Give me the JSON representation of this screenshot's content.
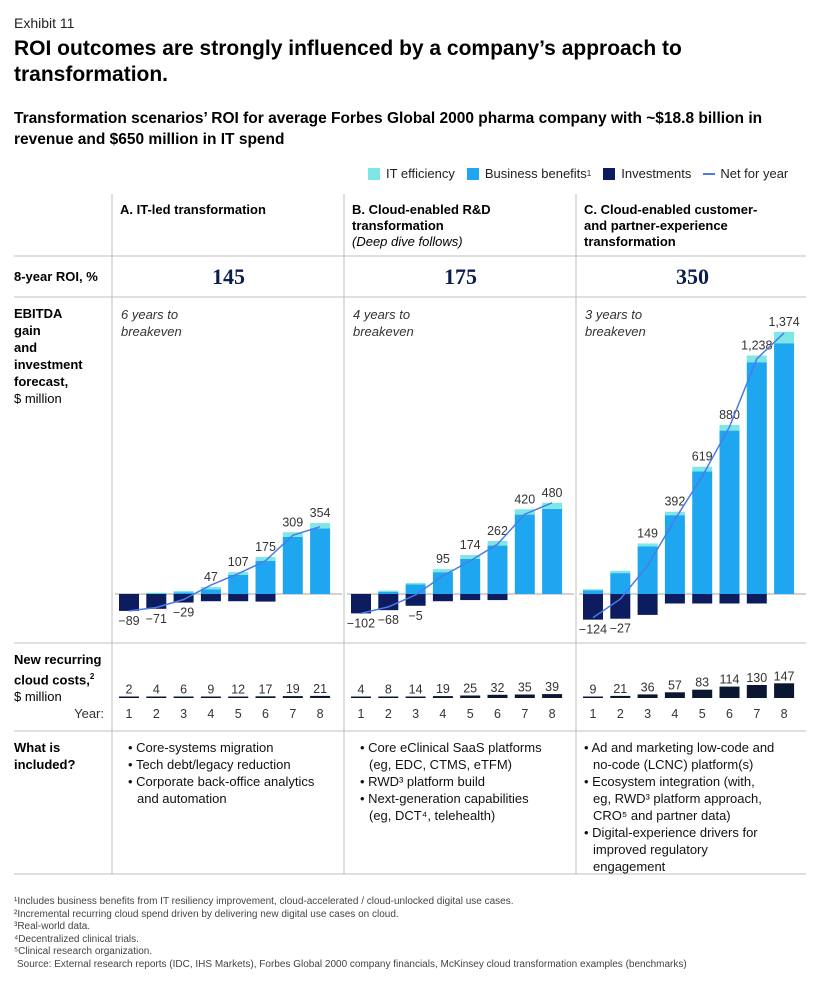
{
  "exhibit": "Exhibit 11",
  "title": "ROI outcomes are strongly influenced by a company’s approach to transformation.",
  "subtitle": "Transformation scenarios’ ROI for average Forbes Global 2000 pharma company with ~$18.8 billion in revenue and $650 million in IT spend",
  "legend": {
    "it_efficiency": "IT efficiency",
    "business_benefits": "Business benefits",
    "business_benefits_sup": "1",
    "investments": "Investments",
    "net": "Net for year"
  },
  "colors": {
    "it_efficiency": "#7ee7e6",
    "business_benefits": "#1ea7f0",
    "investments": "#0c1c5e",
    "net_line": "#4a7be8",
    "cloud_costs": "#0b1730",
    "divider": "#bfbfbf"
  },
  "row_labels": {
    "roi": "8-year ROI, %",
    "ebitda_1": "EBITDA",
    "ebitda_2": "gain",
    "ebitda_3": "and",
    "ebitda_4": "investment",
    "ebitda_5": "forecast,",
    "ebitda_unit": "$ million",
    "cloud_1": "New recurring",
    "cloud_2": "cloud costs,",
    "cloud_sup": "2",
    "cloud_unit": "$ million",
    "year": "Year:",
    "included_1": "What is",
    "included_2": "included?"
  },
  "columns": [
    {
      "title_1": "A. IT-led transformation",
      "title_2": "",
      "subtitle": "",
      "roi": "145",
      "breakeven_1": "6 years to",
      "breakeven_2": "breakeven",
      "included": [
        "Core-systems migration",
        "Tech debt/legacy reduction",
        "Corporate back-office analytics",
        "and automation"
      ]
    },
    {
      "title_1": "B. Cloud-enabled R&D",
      "title_2": "transformation",
      "subtitle": "(Deep dive follows)",
      "roi": "175",
      "breakeven_1": "4 years to",
      "breakeven_2": "breakeven",
      "included": [
        "Core eClinical SaaS platforms",
        "(eg, EDC, CTMS, eTFM)",
        "RWD³ platform build",
        "Next-generation capabilities",
        "(eg, DCT⁴, telehealth)"
      ]
    },
    {
      "title_1": "C. Cloud-enabled customer-",
      "title_2": "and partner-experience",
      "title_3": "transformation",
      "subtitle": "",
      "roi": "350",
      "breakeven_1": "3 years to",
      "breakeven_2": "breakeven",
      "included": [
        "Ad and marketing low-code and",
        "no-code (LCNC) platform(s)",
        "Ecosystem integration (with,",
        "eg, RWD³ platform approach,",
        "CRO⁵ and partner data)",
        "Digital-experience drivers for",
        "improved regulatory",
        "engagement"
      ]
    }
  ],
  "chart_data": [
    {
      "type": "bar",
      "name": "A. IT-led transformation",
      "categories": [
        "1",
        "2",
        "3",
        "4",
        "5",
        "6",
        "7",
        "8"
      ],
      "series": [
        {
          "name": "IT efficiency",
          "values": [
            0,
            5,
            8,
            12,
            15,
            20,
            25,
            28
          ]
        },
        {
          "name": "Business benefits",
          "values": [
            0,
            2,
            8,
            25,
            100,
            175,
            300,
            345
          ]
        },
        {
          "name": "Investments",
          "values": [
            -89,
            -78,
            -45,
            -38,
            -38,
            -40,
            0,
            0
          ]
        },
        {
          "name": "Net for year",
          "values": [
            -89,
            -71,
            -29,
            47,
            107,
            175,
            309,
            354
          ]
        }
      ],
      "net_labels": [
        "−89",
        "−71",
        "−29",
        "47",
        "107",
        "175",
        "309",
        "354"
      ],
      "cloud_costs": [
        2,
        4,
        6,
        9,
        12,
        17,
        19,
        21
      ],
      "ylim": [
        -150,
        1420
      ]
    },
    {
      "type": "bar",
      "name": "B. Cloud-enabled R&D transformation",
      "categories": [
        "1",
        "2",
        "3",
        "4",
        "5",
        "6",
        "7",
        "8"
      ],
      "series": [
        {
          "name": "IT efficiency",
          "values": [
            0,
            6,
            8,
            16,
            20,
            24,
            28,
            32
          ]
        },
        {
          "name": "Business benefits",
          "values": [
            0,
            12,
            50,
            115,
            185,
            255,
            418,
            448
          ]
        },
        {
          "name": "Investments",
          "values": [
            -102,
            -85,
            -62,
            -38,
            -32,
            -32,
            0,
            0
          ]
        },
        {
          "name": "Net for year",
          "values": [
            -102,
            -68,
            -5,
            95,
            174,
            262,
            420,
            480
          ]
        }
      ],
      "net_labels": [
        "−102",
        "−68",
        "−5",
        "95",
        "174",
        "262",
        "420",
        "480"
      ],
      "cloud_costs": [
        4,
        8,
        14,
        19,
        25,
        32,
        35,
        39
      ],
      "ylim": [
        -150,
        1420
      ]
    },
    {
      "type": "bar",
      "name": "C. Cloud-enabled customer- and partner-experience transformation",
      "categories": [
        "1",
        "2",
        "3",
        "4",
        "5",
        "6",
        "7",
        "8"
      ],
      "series": [
        {
          "name": "IT efficiency",
          "values": [
            5,
            12,
            16,
            18,
            25,
            30,
            35,
            60
          ]
        },
        {
          "name": "Business benefits",
          "values": [
            20,
            110,
            250,
            415,
            645,
            860,
            1220,
            1320
          ]
        },
        {
          "name": "Investments",
          "values": [
            -135,
            -130,
            -110,
            -50,
            -50,
            -50,
            -50,
            0
          ]
        },
        {
          "name": "Net for year",
          "values": [
            -124,
            -27,
            149,
            392,
            619,
            880,
            1238,
            1374
          ]
        }
      ],
      "net_labels": [
        "−124",
        "−27",
        "149",
        "392",
        "619",
        "880",
        "1,238",
        "1,374"
      ],
      "cloud_costs": [
        9,
        21,
        36,
        57,
        83,
        114,
        130,
        147
      ],
      "ylim": [
        -150,
        1420
      ]
    }
  ],
  "footnotes": [
    "¹Includes business benefits from IT resiliency improvement, cloud-accelerated / cloud-unlocked digital use cases.",
    "²Incremental recurring cloud spend driven by delivering new digital use cases on cloud.",
    "³Real-world data.",
    "⁴Decentralized clinical trials.",
    "⁵Clinical research organization.",
    "Source: External research reports (IDC, IHS Markets), Forbes Global 2000 company financials, McKinsey cloud transformation examples (benchmarks)"
  ]
}
